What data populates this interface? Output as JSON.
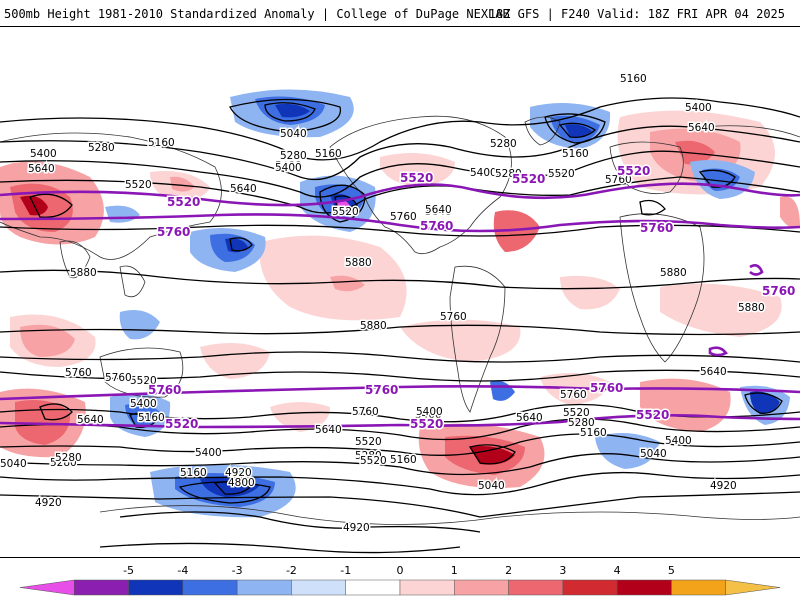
{
  "header": {
    "title_left": "500mb Height 1981-2010 Standardized Anomaly | College of DuPage NEXLAB",
    "title_right": "18Z GFS | F240 Valid: 18Z FRI APR 04 2025"
  },
  "contour_labels": {
    "black": [
      "5160",
      "5400",
      "5640",
      "5040",
      "5160",
      "5280",
      "5280",
      "5160",
      "5400",
      "5640",
      "5280",
      "5520",
      "5640",
      "5160",
      "5400",
      "5400",
      "5280",
      "5520",
      "5640",
      "5760",
      "5880",
      "5880",
      "5880",
      "5880",
      "5880",
      "5760",
      "5760",
      "5640",
      "5520",
      "5400",
      "5400",
      "5280",
      "5160",
      "5040",
      "4920",
      "4800",
      "4920",
      "4920",
      "5040",
      "5160",
      "5280",
      "5400",
      "5520",
      "5640",
      "5760",
      "5760",
      "5640",
      "5520",
      "5400",
      "5280",
      "5160",
      "5040",
      "4920",
      "5400",
      "5520",
      "5640",
      "5280",
      "5160",
      "5040",
      "5640",
      "5760",
      "5520",
      "5400",
      "5760"
    ],
    "purple": [
      "5520",
      "5520",
      "5520",
      "5760",
      "5760",
      "5760",
      "5760",
      "5760",
      "5760",
      "5520",
      "5520",
      "5520",
      "5760",
      "5520"
    ]
  },
  "legend": {
    "tick_labels": [
      "-5",
      "-4",
      "-3",
      "-2",
      "-1",
      "0",
      "1",
      "2",
      "3",
      "4",
      "5"
    ],
    "colors": [
      "#e84fe8",
      "#8a1fb0",
      "#1035b8",
      "#3d6fe3",
      "#8fb4f2",
      "#cfe0fb",
      "#ffffff",
      "#fcd4d4",
      "#f7a3a5",
      "#ec6770",
      "#d12a30",
      "#b3001a",
      "#f3a31a",
      "#f5c046"
    ]
  },
  "colors": {
    "contour": "#000000",
    "thickness": "#8a16b5",
    "coast": "#333333"
  }
}
